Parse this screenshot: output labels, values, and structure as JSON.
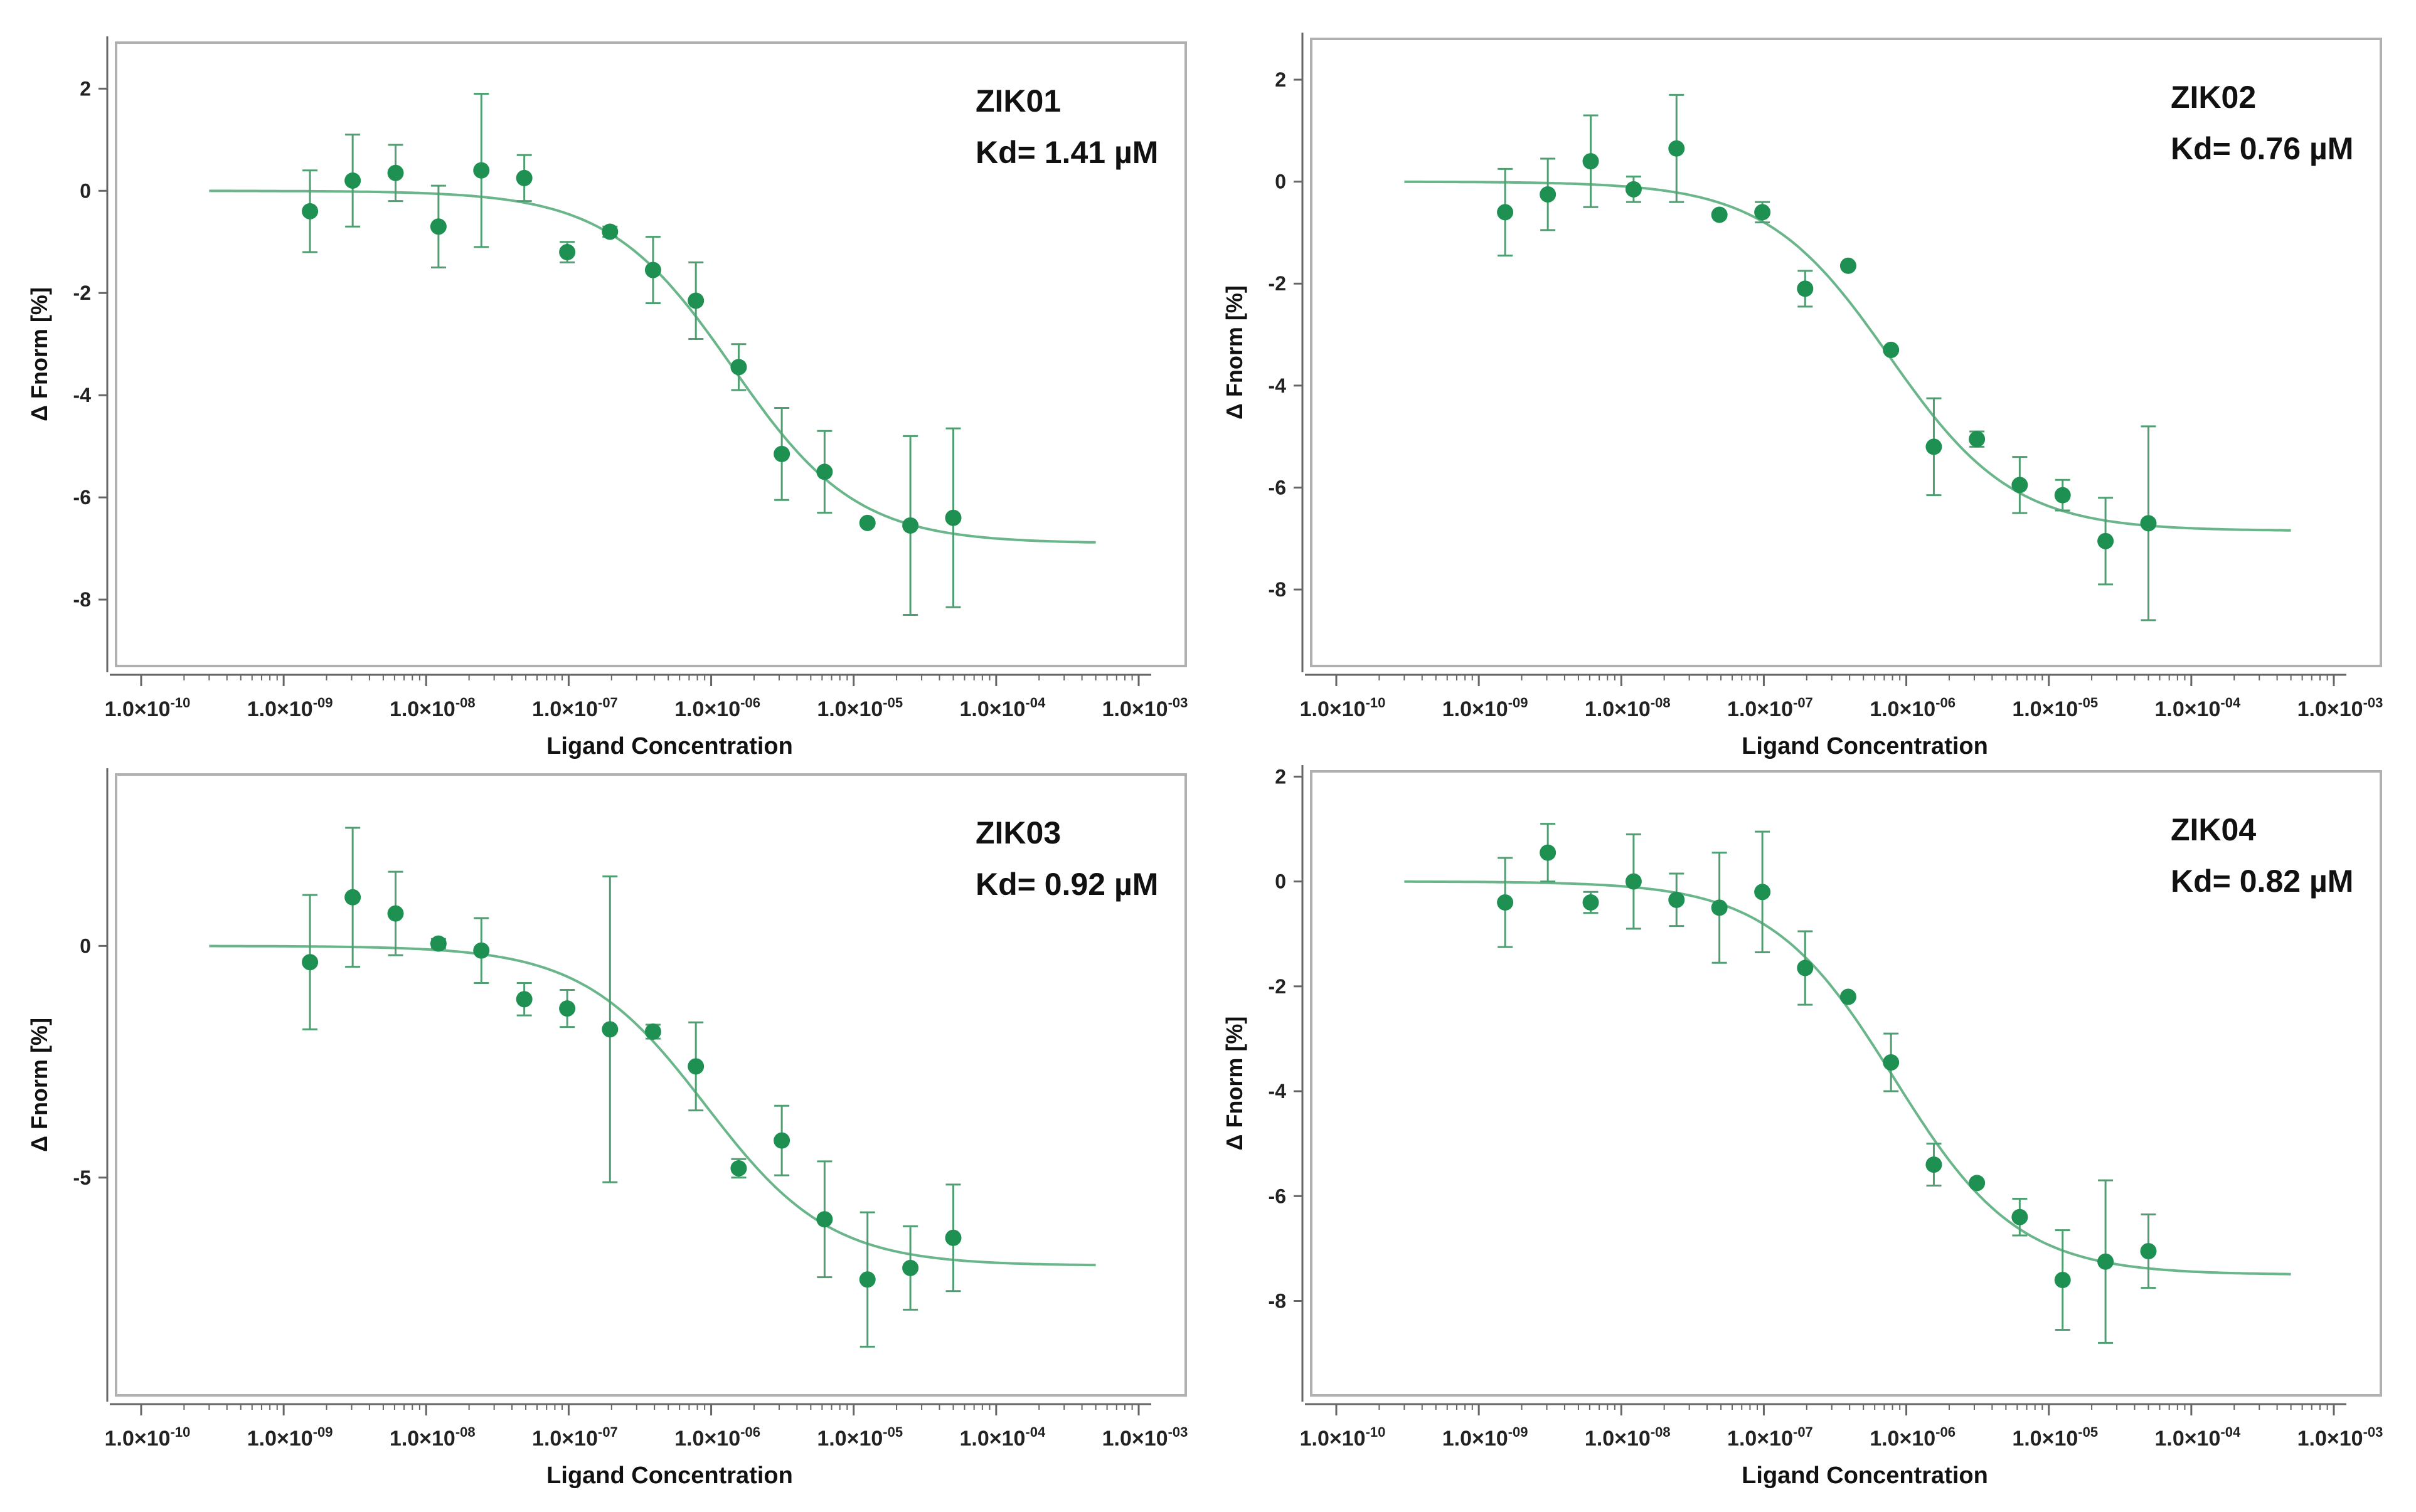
{
  "chart_data": [
    {
      "type": "scatter",
      "panel": "ZIK01",
      "annotation": [
        "ZIK01",
        "Kd= 1.41 µM"
      ],
      "xlabel": "Ligand Concentration",
      "ylabel": "Δ Fnorm [%]",
      "x_scale": "log",
      "xlim_exp": [
        -10,
        -3
      ],
      "x_ticks": [
        "1.0×10",
        "1.0×10",
        "1.0×10",
        "1.0×10",
        "1.0×10",
        "1.0×10",
        "1.0×10",
        "1.0×10"
      ],
      "x_tick_exps": [
        "-10",
        "-09",
        "-08",
        "-07",
        "-06",
        "-05",
        "-04",
        "-03"
      ],
      "ylim": [
        -9.3,
        2.9
      ],
      "y_ticks": [
        2,
        0,
        -2,
        -4,
        -6,
        -8
      ],
      "fit": {
        "top": 0,
        "bottom": -6.9,
        "kd": 1.41e-06,
        "x_range": [
          3e-10,
          0.0005
        ]
      },
      "points": [
        {
          "x": 1.53e-09,
          "y": -0.4,
          "err": 0.8
        },
        {
          "x": 3.05e-09,
          "y": 0.2,
          "err": 0.9
        },
        {
          "x": 6.1e-09,
          "y": 0.35,
          "err": 0.55
        },
        {
          "x": 1.22e-08,
          "y": -0.7,
          "err": 0.8
        },
        {
          "x": 2.44e-08,
          "y": 0.4,
          "err": 1.5
        },
        {
          "x": 4.88e-08,
          "y": 0.25,
          "err": 0.45
        },
        {
          "x": 9.77e-08,
          "y": -1.2,
          "err": 0.2
        },
        {
          "x": 1.95e-07,
          "y": -0.8,
          "err": 0.1
        },
        {
          "x": 3.91e-07,
          "y": -1.55,
          "err": 0.65
        },
        {
          "x": 7.81e-07,
          "y": -2.15,
          "err": 0.75
        },
        {
          "x": 1.56e-06,
          "y": -3.45,
          "err": 0.45
        },
        {
          "x": 3.13e-06,
          "y": -5.15,
          "err": 0.9
        },
        {
          "x": 6.25e-06,
          "y": -5.5,
          "err": 0.8
        },
        {
          "x": 1.25e-05,
          "y": -6.5,
          "err": 0
        },
        {
          "x": 2.5e-05,
          "y": -6.55,
          "err": 1.75
        },
        {
          "x": 5e-05,
          "y": -6.4,
          "err": 1.75
        }
      ]
    },
    {
      "type": "scatter",
      "panel": "ZIK02",
      "annotation": [
        "ZIK02",
        "Kd= 0.76 µM"
      ],
      "xlabel": "Ligand Concentration",
      "ylabel": "Δ Fnorm [%]",
      "x_scale": "log",
      "xlim_exp": [
        -10,
        -3
      ],
      "x_ticks": [
        "1.0×10",
        "1.0×10",
        "1.0×10",
        "1.0×10",
        "1.0×10",
        "1.0×10",
        "1.0×10",
        "1.0×10"
      ],
      "x_tick_exps": [
        "-10",
        "-09",
        "-08",
        "-07",
        "-06",
        "-05",
        "-04",
        "-03"
      ],
      "ylim": [
        -9.5,
        2.8
      ],
      "y_ticks": [
        2,
        0,
        -2,
        -4,
        -6,
        -8
      ],
      "fit": {
        "top": 0,
        "bottom": -6.85,
        "kd": 7.6e-07,
        "x_range": [
          3e-10,
          0.0005
        ]
      },
      "points": [
        {
          "x": 1.53e-09,
          "y": -0.6,
          "err": 0.85
        },
        {
          "x": 3.05e-09,
          "y": -0.25,
          "err": 0.7
        },
        {
          "x": 6.1e-09,
          "y": 0.4,
          "err": 0.9
        },
        {
          "x": 1.22e-08,
          "y": -0.15,
          "err": 0.25
        },
        {
          "x": 2.44e-08,
          "y": 0.65,
          "err": 1.05
        },
        {
          "x": 4.88e-08,
          "y": -0.65,
          "err": 0
        },
        {
          "x": 9.77e-08,
          "y": -0.6,
          "err": 0.2
        },
        {
          "x": 1.95e-07,
          "y": -2.1,
          "err": 0.35
        },
        {
          "x": 3.91e-07,
          "y": -1.65,
          "err": 0
        },
        {
          "x": 7.81e-07,
          "y": -3.3,
          "err": 0
        },
        {
          "x": 1.56e-06,
          "y": -5.2,
          "err": 0.95
        },
        {
          "x": 3.13e-06,
          "y": -5.05,
          "err": 0.15
        },
        {
          "x": 6.25e-06,
          "y": -5.95,
          "err": 0.55
        },
        {
          "x": 1.25e-05,
          "y": -6.15,
          "err": 0.3
        },
        {
          "x": 2.5e-05,
          "y": -7.05,
          "err": 0.85
        },
        {
          "x": 5e-05,
          "y": -6.7,
          "err": 1.9
        }
      ]
    },
    {
      "type": "scatter",
      "panel": "ZIK03",
      "annotation": [
        "ZIK03",
        "Kd= 0.92 µM"
      ],
      "xlabel": "Ligand Concentration",
      "ylabel": "Δ Fnorm [%]",
      "x_scale": "log",
      "xlim_exp": [
        -10,
        -3
      ],
      "x_ticks": [
        "1.0×10",
        "1.0×10",
        "1.0×10",
        "1.0×10",
        "1.0×10",
        "1.0×10",
        "1.0×10",
        "1.0×10"
      ],
      "x_tick_exps": [
        "-10",
        "-09",
        "-08",
        "-07",
        "-06",
        "-05",
        "-04",
        "-03"
      ],
      "ylim": [
        -9.7,
        3.7
      ],
      "y_ticks": [
        0,
        -5
      ],
      "fit": {
        "top": 0,
        "bottom": -6.9,
        "kd": 9.2e-07,
        "x_range": [
          3e-10,
          0.0005
        ]
      },
      "points": [
        {
          "x": 1.53e-09,
          "y": -0.35,
          "err": 1.45
        },
        {
          "x": 3.05e-09,
          "y": 1.05,
          "err": 1.5
        },
        {
          "x": 6.1e-09,
          "y": 0.7,
          "err": 0.9
        },
        {
          "x": 1.22e-08,
          "y": 0.05,
          "err": 0.1
        },
        {
          "x": 2.44e-08,
          "y": -0.1,
          "err": 0.7
        },
        {
          "x": 4.88e-08,
          "y": -1.15,
          "err": 0.35
        },
        {
          "x": 9.77e-08,
          "y": -1.35,
          "err": 0.4
        },
        {
          "x": 1.95e-07,
          "y": -1.8,
          "err": 3.3
        },
        {
          "x": 3.91e-07,
          "y": -1.85,
          "err": 0.15
        },
        {
          "x": 7.81e-07,
          "y": -2.6,
          "err": 0.95
        },
        {
          "x": 1.56e-06,
          "y": -4.8,
          "err": 0.2
        },
        {
          "x": 3.13e-06,
          "y": -4.2,
          "err": 0.75
        },
        {
          "x": 6.25e-06,
          "y": -5.9,
          "err": 1.25
        },
        {
          "x": 1.25e-05,
          "y": -7.2,
          "err": 1.45
        },
        {
          "x": 2.5e-05,
          "y": -6.95,
          "err": 0.9
        },
        {
          "x": 5e-05,
          "y": -6.3,
          "err": 1.15
        }
      ]
    },
    {
      "type": "scatter",
      "panel": "ZIK04",
      "annotation": [
        "ZIK04",
        "Kd= 0.82 µM"
      ],
      "xlabel": "Ligand Concentration",
      "ylabel": "Δ Fnorm [%]",
      "x_scale": "log",
      "xlim_exp": [
        -10,
        -3
      ],
      "x_ticks": [
        "1.0×10",
        "1.0×10",
        "1.0×10",
        "1.0×10",
        "1.0×10",
        "1.0×10",
        "1.0×10",
        "1.0×10"
      ],
      "x_tick_exps": [
        "-10",
        "-09",
        "-08",
        "-07",
        "-06",
        "-05",
        "-04",
        "-03"
      ],
      "ylim": [
        -9.8,
        2.1
      ],
      "y_ticks": [
        2,
        0,
        -2,
        -4,
        -6,
        -8
      ],
      "fit": {
        "top": 0,
        "bottom": -7.5,
        "kd": 8.2e-07,
        "x_range": [
          3e-10,
          0.0005
        ]
      },
      "points": [
        {
          "x": 1.53e-09,
          "y": -0.4,
          "err": 0.85
        },
        {
          "x": 3.05e-09,
          "y": 0.55,
          "err": 0.55
        },
        {
          "x": 6.1e-09,
          "y": -0.4,
          "err": 0.2
        },
        {
          "x": 1.22e-08,
          "y": 0,
          "err": 0.9
        },
        {
          "x": 2.44e-08,
          "y": -0.35,
          "err": 0.5
        },
        {
          "x": 4.88e-08,
          "y": -0.5,
          "err": 1.05
        },
        {
          "x": 9.77e-08,
          "y": -0.2,
          "err": 1.15
        },
        {
          "x": 1.95e-07,
          "y": -1.65,
          "err": 0.7
        },
        {
          "x": 3.91e-07,
          "y": -2.2,
          "err": 0
        },
        {
          "x": 7.81e-07,
          "y": -3.45,
          "err": 0.55
        },
        {
          "x": 1.56e-06,
          "y": -5.4,
          "err": 0.4
        },
        {
          "x": 3.13e-06,
          "y": -5.75,
          "err": 0
        },
        {
          "x": 6.25e-06,
          "y": -6.4,
          "err": 0.35
        },
        {
          "x": 1.25e-05,
          "y": -7.6,
          "err": 0.95
        },
        {
          "x": 2.5e-05,
          "y": -7.25,
          "err": 1.55
        },
        {
          "x": 5e-05,
          "y": -7.05,
          "err": 0.7
        }
      ]
    }
  ],
  "colors": {
    "marker": "#1e9152",
    "fit_line": "#6ab58a",
    "error_bar": "#4f9f72",
    "frame": "#b0b0b0",
    "axis": "#666666"
  }
}
